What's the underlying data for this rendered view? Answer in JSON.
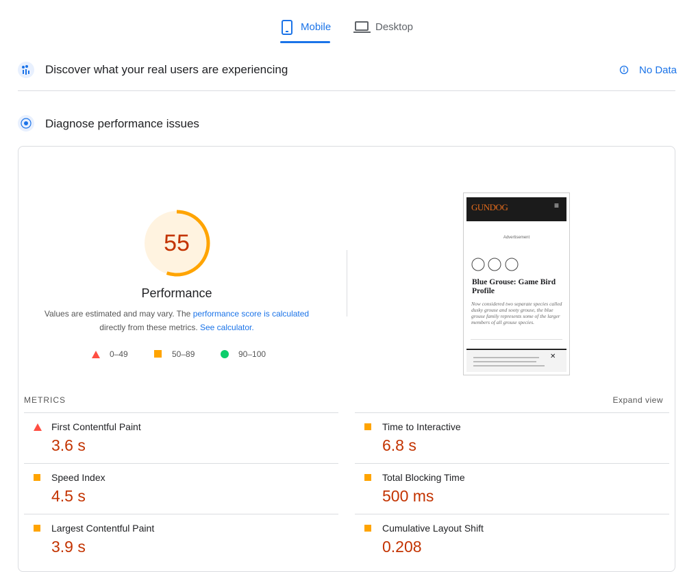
{
  "tabs": [
    "Mobile",
    "Desktop"
  ],
  "field_section": {
    "title": "Discover what your real users are experiencing",
    "status": "No Data"
  },
  "lab_section": {
    "title": "Diagnose performance issues"
  },
  "score": {
    "value": 55,
    "label": "Performance"
  },
  "note": {
    "text1": "Values are estimated and may vary. The",
    "link1": "performance score is calculated",
    "text2": "directly from these metrics.",
    "link2": "See calculator."
  },
  "legend": [
    "0–49",
    "50–89",
    "90–100"
  ],
  "screenshot": {
    "logo": "GUNDOG",
    "ad": "Advertisement",
    "headline": "Blue Grouse: Game Bird Profile",
    "dek": "Now considered two separate species called dusky grouse and sooty grouse, the blue grouse family represents some of the larger members of all grouse species."
  },
  "metrics": {
    "title": "METRICS",
    "expand": "Expand view",
    "items": [
      {
        "name": "First Contentful Paint",
        "value": "3.6 s",
        "rating": "fail"
      },
      {
        "name": "Time to Interactive",
        "value": "6.8 s",
        "rating": "average"
      },
      {
        "name": "Speed Index",
        "value": "4.5 s",
        "rating": "average"
      },
      {
        "name": "Total Blocking Time",
        "value": "500 ms",
        "rating": "average"
      },
      {
        "name": "Largest Contentful Paint",
        "value": "3.9 s",
        "rating": "average"
      },
      {
        "name": "Cumulative Layout Shift",
        "value": "0.208",
        "rating": "average"
      }
    ]
  }
}
